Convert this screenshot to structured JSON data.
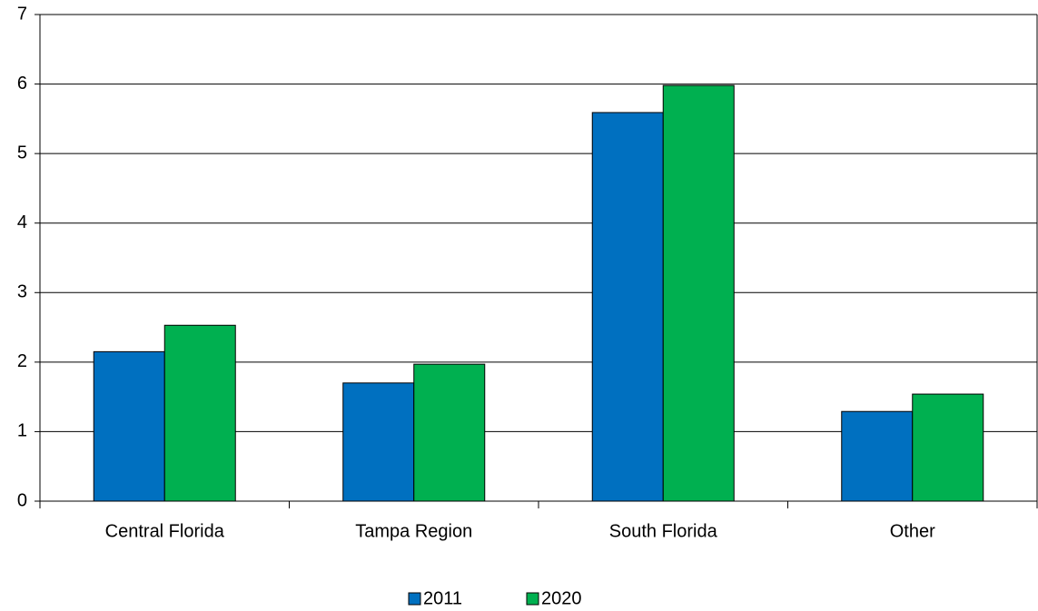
{
  "chart_data": {
    "type": "bar",
    "categories": [
      "Central Florida",
      "Tampa Region",
      "South Florida",
      "Other"
    ],
    "series": [
      {
        "name": "2011",
        "color": "#0070c0",
        "values": [
          2.15,
          1.7,
          5.59,
          1.29
        ]
      },
      {
        "name": "2020",
        "color": "#00b050",
        "values": [
          2.53,
          1.97,
          5.98,
          1.54
        ]
      }
    ],
    "ylim": [
      0,
      7
    ],
    "yticks": [
      0,
      1,
      2,
      3,
      4,
      5,
      6,
      7
    ],
    "grid": true,
    "legend": "bottom"
  }
}
